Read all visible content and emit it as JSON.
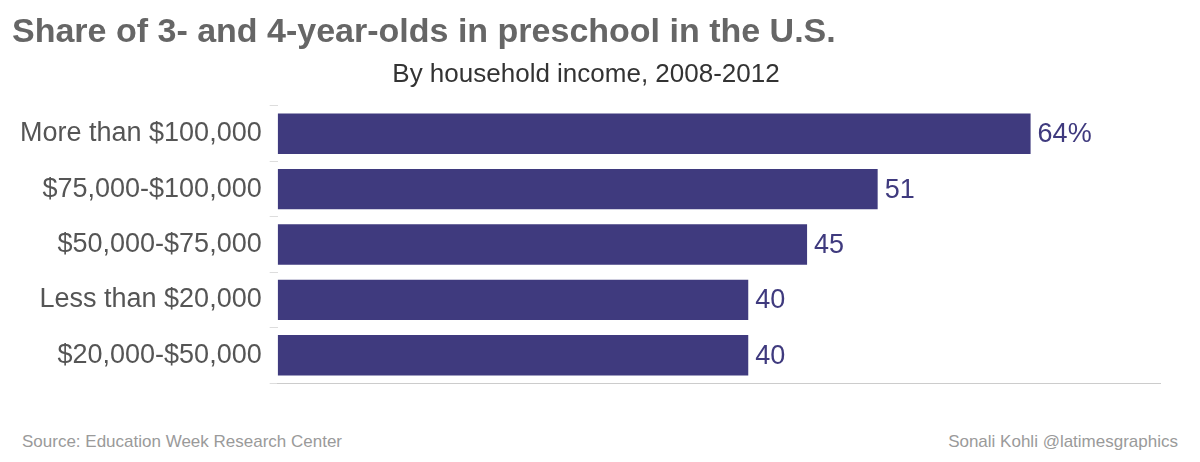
{
  "chart_data": {
    "type": "bar",
    "title": "Share of 3- and 4-year-olds in preschool in the U.S.",
    "subtitle": "By household income, 2008-2012",
    "categories": [
      "More than $100,000",
      "$75,000-$100,000",
      "$50,000-$75,000",
      "Less than $20,000",
      "$20,000-$50,000"
    ],
    "values": [
      64,
      51,
      45,
      40,
      40
    ],
    "value_labels": [
      "64%",
      "51",
      "45",
      "40",
      "40"
    ],
    "color": "#3f3a7e",
    "orientation": "horizontal",
    "data_labels": true,
    "tick_labels": "y",
    "grid": false,
    "xlim": [
      0,
      75
    ],
    "source": "Source: Education Week Research Center",
    "credit": "Sonali Kohli @latimesgraphics"
  }
}
